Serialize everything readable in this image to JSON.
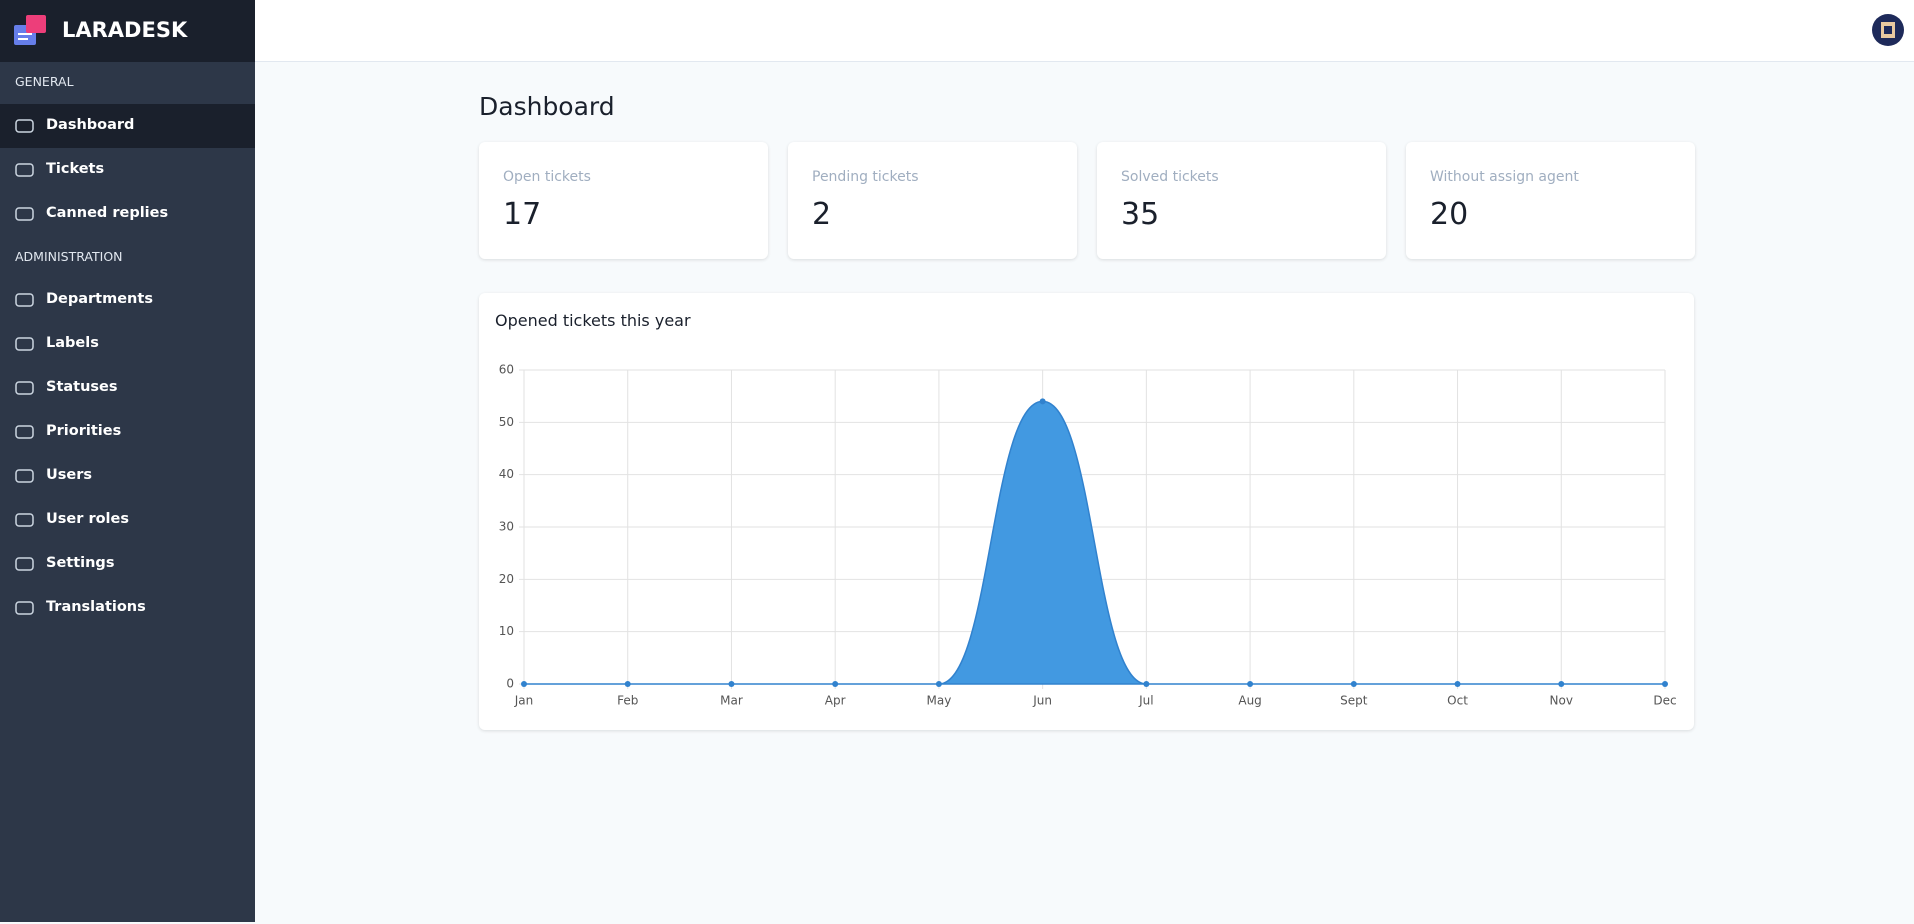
{
  "header": {
    "brand": "LARADESK"
  },
  "sidebar": {
    "sections": [
      {
        "title": "GENERAL",
        "items": [
          "Dashboard",
          "Tickets",
          "Canned replies"
        ]
      },
      {
        "title": "ADMINISTRATION",
        "items": [
          "Departments",
          "Labels",
          "Statuses",
          "Priorities",
          "Users",
          "User roles",
          "Settings",
          "Translations"
        ]
      }
    ]
  },
  "page": {
    "title": "Dashboard"
  },
  "stats": [
    {
      "label": "Open tickets",
      "value": 17
    },
    {
      "label": "Pending tickets",
      "value": 2
    },
    {
      "label": "Solved tickets",
      "value": 35
    },
    {
      "label": "Without assign agent",
      "value": 20
    }
  ],
  "chart_data": {
    "type": "area",
    "title": "Opened tickets this year",
    "categories": [
      "Jan",
      "Feb",
      "Mar",
      "Apr",
      "May",
      "Jun",
      "Jul",
      "Aug",
      "Sept",
      "Oct",
      "Nov",
      "Dec"
    ],
    "values": [
      0,
      0,
      0,
      0,
      0,
      54,
      0,
      0,
      0,
      0,
      0,
      0
    ],
    "color": "#4299e1",
    "ylim": [
      0,
      60
    ],
    "yticks": [
      0,
      10,
      20,
      30,
      40,
      50,
      60
    ],
    "grid": true
  }
}
